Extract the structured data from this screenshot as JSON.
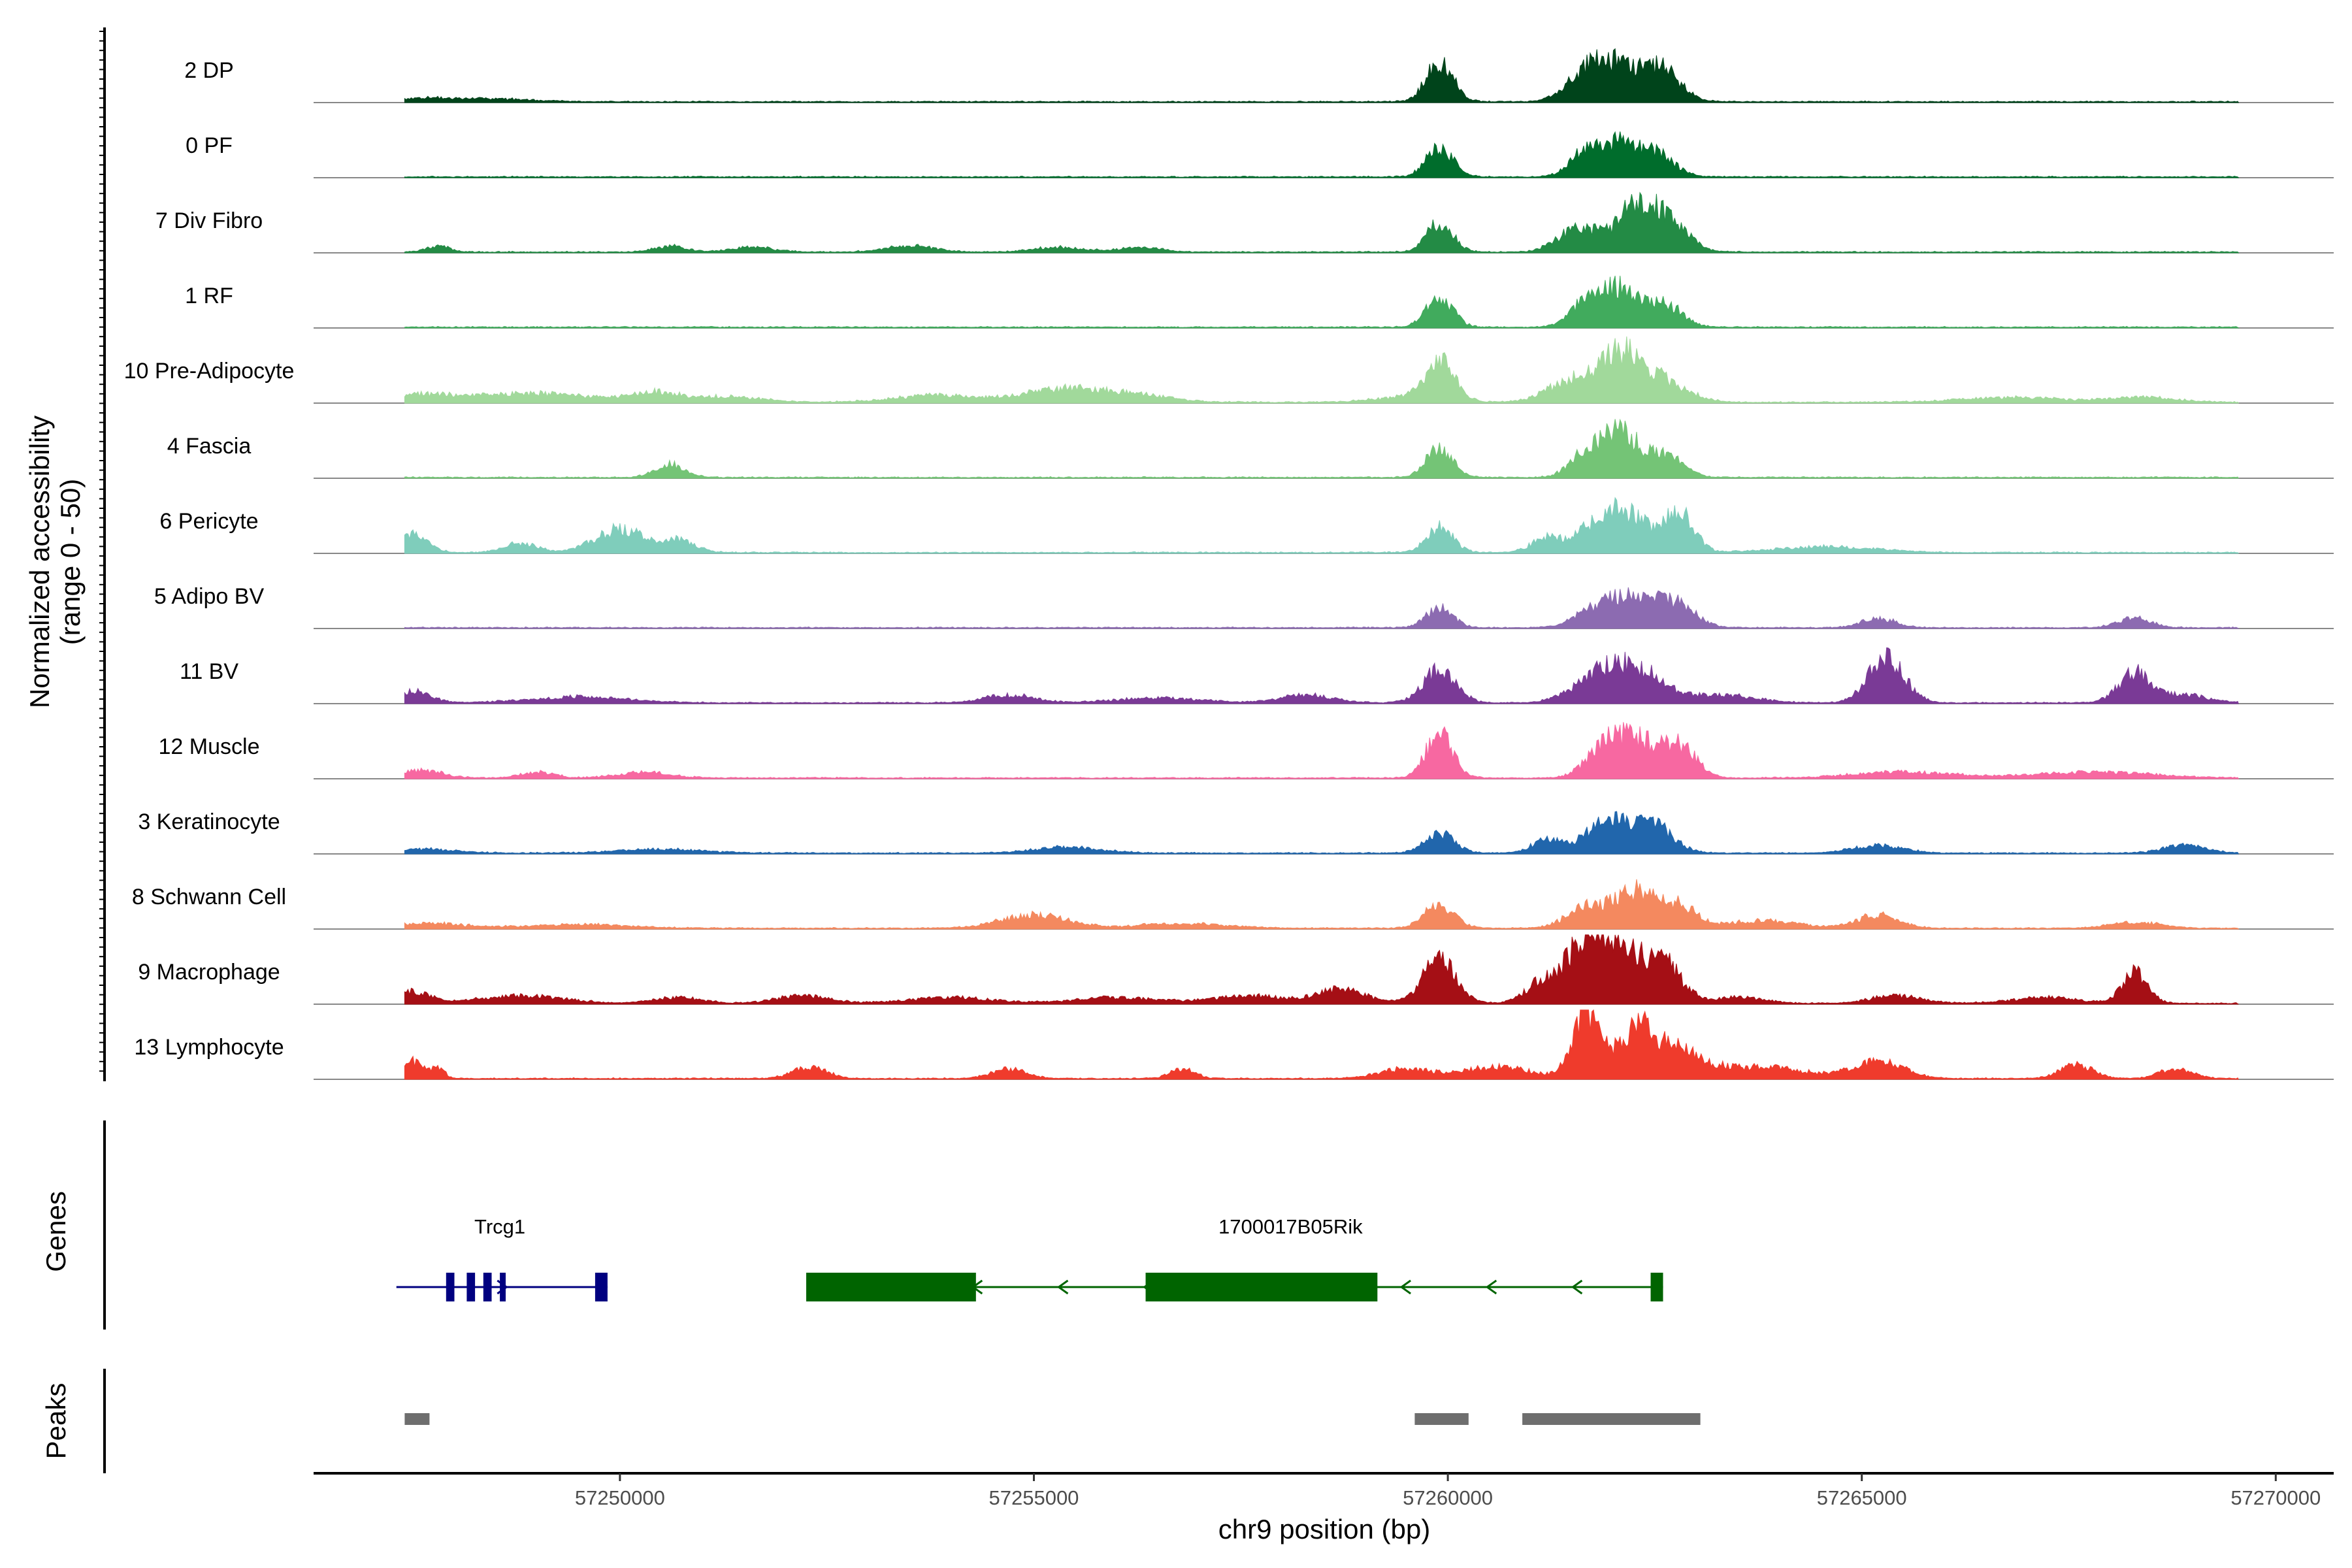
{
  "chart_data": {
    "type": "area",
    "title": "",
    "xlabel": "chr9 position (bp)",
    "ylabel": "Normalized accessibility\n(range 0 - 50)",
    "ylabel_line1": "Normalized accessibility",
    "ylabel_line2": "(range 0 - 50)",
    "ylim": [
      0,
      50
    ],
    "xlim": [
      57246300,
      57270700
    ],
    "x_ticks": [
      57250000,
      57255000,
      57260000,
      57265000,
      57270000
    ],
    "x_tick_labels": [
      "57250000",
      "57255000",
      "57260000",
      "57265000",
      "57270000"
    ],
    "panel_labels": {
      "genes": "Genes",
      "peaks": "Peaks"
    },
    "series": [
      {
        "name": "2 DP",
        "color": "#00441b",
        "peaks": [
          [
            57247600,
            3,
            320
          ],
          [
            57248400,
            3,
            500
          ],
          [
            57259900,
            42,
            160
          ],
          [
            57261700,
            28,
            250
          ],
          [
            57262100,
            30,
            300
          ],
          [
            57262600,
            28,
            220
          ]
        ]
      },
      {
        "name": "0 PF",
        "color": "#006d2c",
        "peaks": [
          [
            57259900,
            30,
            160
          ],
          [
            57261700,
            28,
            200
          ],
          [
            57262100,
            28,
            200
          ],
          [
            57262500,
            24,
            220
          ]
        ]
      },
      {
        "name": "7 Div Fibro",
        "color": "#238b45",
        "peaks": [
          [
            57247800,
            6,
            140
          ],
          [
            57250600,
            6,
            200
          ],
          [
            57251600,
            5,
            250
          ],
          [
            57253500,
            6,
            300
          ],
          [
            57255300,
            5,
            300
          ],
          [
            57256300,
            5,
            250
          ],
          [
            57259900,
            30,
            160
          ],
          [
            57261600,
            26,
            250
          ],
          [
            57262300,
            50,
            220
          ],
          [
            57262700,
            26,
            220
          ]
        ]
      },
      {
        "name": "1 RF",
        "color": "#41ab5d",
        "peaks": [
          [
            57259900,
            30,
            160
          ],
          [
            57261700,
            28,
            200
          ],
          [
            57262100,
            36,
            200
          ],
          [
            57262600,
            24,
            220
          ]
        ]
      },
      {
        "name": "10 Pre-Adipocyte",
        "color": "#a1d99b",
        "peaks": [
          [
            57247600,
            8,
            500
          ],
          [
            57249000,
            9,
            600
          ],
          [
            57250400,
            10,
            300
          ],
          [
            57251300,
            6,
            400
          ],
          [
            57253800,
            7,
            500
          ],
          [
            57255400,
            14,
            500
          ],
          [
            57256300,
            6,
            400
          ],
          [
            57259500,
            5,
            400
          ],
          [
            57259900,
            40,
            180
          ],
          [
            57261500,
            22,
            300
          ],
          [
            57262100,
            46,
            250
          ],
          [
            57262600,
            20,
            300
          ],
          [
            57266800,
            5,
            600
          ],
          [
            57268400,
            5,
            400
          ]
        ]
      },
      {
        "name": "4 Fascia",
        "color": "#74c476",
        "peaks": [
          [
            57250600,
            14,
            180
          ],
          [
            57259900,
            30,
            160
          ],
          [
            57261700,
            28,
            200
          ],
          [
            57262100,
            42,
            200
          ],
          [
            57262600,
            24,
            220
          ]
        ]
      },
      {
        "name": "6 Pericyte",
        "color": "#7fcdbb",
        "peaks": [
          [
            57247500,
            18,
            180
          ],
          [
            57248800,
            10,
            200
          ],
          [
            57250000,
            24,
            300
          ],
          [
            57250700,
            12,
            200
          ],
          [
            57259900,
            26,
            160
          ],
          [
            57261200,
            16,
            180
          ],
          [
            57261800,
            28,
            220
          ],
          [
            57262200,
            36,
            250
          ],
          [
            57262800,
            40,
            180
          ],
          [
            57264600,
            6,
            600
          ]
        ]
      },
      {
        "name": "5 Adipo BV",
        "color": "#8c6bb1",
        "peaks": [
          [
            57259900,
            20,
            160
          ],
          [
            57261800,
            18,
            250
          ],
          [
            57262300,
            30,
            300
          ],
          [
            57262800,
            18,
            220
          ],
          [
            57265200,
            10,
            200
          ],
          [
            57268300,
            10,
            200
          ]
        ]
      },
      {
        "name": "11 BV",
        "color": "#7a3a96",
        "peaks": [
          [
            57247500,
            12,
            200
          ],
          [
            57249500,
            6,
            600
          ],
          [
            57254700,
            8,
            300
          ],
          [
            57256500,
            5,
            500
          ],
          [
            57258300,
            8,
            300
          ],
          [
            57259900,
            34,
            200
          ],
          [
            57261800,
            26,
            300
          ],
          [
            57262300,
            32,
            300
          ],
          [
            57263300,
            8,
            400
          ],
          [
            57265300,
            46,
            220
          ],
          [
            57268300,
            30,
            200
          ],
          [
            57268900,
            8,
            300
          ]
        ]
      },
      {
        "name": "12 Muscle",
        "color": "#f768a1",
        "peaks": [
          [
            57247600,
            8,
            250
          ],
          [
            57249000,
            6,
            200
          ],
          [
            57250300,
            6,
            300
          ],
          [
            57259900,
            46,
            160
          ],
          [
            57261900,
            32,
            220
          ],
          [
            57262300,
            36,
            220
          ],
          [
            57262800,
            32,
            200
          ],
          [
            57265500,
            6,
            600
          ],
          [
            57267800,
            6,
            700
          ]
        ]
      },
      {
        "name": "3 Keratinocyte",
        "color": "#2166ac",
        "peaks": [
          [
            57247600,
            4,
            400
          ],
          [
            57250500,
            4,
            500
          ],
          [
            57255400,
            6,
            400
          ],
          [
            57259900,
            20,
            180
          ],
          [
            57261200,
            14,
            180
          ],
          [
            57261800,
            20,
            220
          ],
          [
            57262200,
            28,
            250
          ],
          [
            57262600,
            18,
            200
          ],
          [
            57265200,
            8,
            300
          ],
          [
            57268900,
            8,
            250
          ]
        ]
      },
      {
        "name": "8 Schwann Cell",
        "color": "#f4895f",
        "peaks": [
          [
            57247700,
            5,
            400
          ],
          [
            57249500,
            4,
            600
          ],
          [
            57255000,
            14,
            400
          ],
          [
            57256800,
            5,
            500
          ],
          [
            57259900,
            24,
            180
          ],
          [
            57261700,
            22,
            250
          ],
          [
            57262300,
            38,
            250
          ],
          [
            57262800,
            20,
            220
          ],
          [
            57263800,
            8,
            400
          ],
          [
            57265200,
            14,
            250
          ],
          [
            57268300,
            6,
            300
          ]
        ]
      },
      {
        "name": "9 Macrophage",
        "color": "#a50f15",
        "peaks": [
          [
            57247500,
            12,
            200
          ],
          [
            57248800,
            8,
            500
          ],
          [
            57250700,
            6,
            300
          ],
          [
            57252200,
            8,
            300
          ],
          [
            57254000,
            6,
            500
          ],
          [
            57256000,
            6,
            500
          ],
          [
            57257600,
            8,
            400
          ],
          [
            57258700,
            14,
            300
          ],
          [
            57259900,
            46,
            200
          ],
          [
            57261200,
            26,
            220
          ],
          [
            57261700,
            70,
            200
          ],
          [
            57262100,
            50,
            250
          ],
          [
            57262600,
            40,
            220
          ],
          [
            57263500,
            6,
            300
          ],
          [
            57265400,
            8,
            300
          ],
          [
            57267200,
            6,
            400
          ],
          [
            57268300,
            34,
            150
          ]
        ]
      },
      {
        "name": "13 Lymphocyte",
        "color": "#ef3b2c",
        "peaks": [
          [
            57247500,
            18,
            120
          ],
          [
            57247800,
            12,
            80
          ],
          [
            57252300,
            12,
            200
          ],
          [
            57254700,
            10,
            200
          ],
          [
            57256800,
            10,
            150
          ],
          [
            57259500,
            10,
            300
          ],
          [
            57260600,
            12,
            400
          ],
          [
            57261700,
            70,
            180
          ],
          [
            57262300,
            50,
            200
          ],
          [
            57262800,
            28,
            300
          ],
          [
            57263800,
            12,
            500
          ],
          [
            57265200,
            18,
            300
          ],
          [
            57267600,
            14,
            200
          ],
          [
            57268800,
            10,
            200
          ]
        ]
      }
    ],
    "genes": [
      {
        "name": "Trcg1",
        "strand": "+",
        "color": "#000080",
        "start": 57247300,
        "end": 57249850,
        "exons": [
          [
            57247900,
            57248000
          ],
          [
            57248150,
            57248250
          ],
          [
            57248350,
            57248450
          ],
          [
            57248550,
            57248620
          ],
          [
            57249700,
            57249850
          ]
        ]
      },
      {
        "name": "1700017B05Rik",
        "strand": "-",
        "color": "#006400",
        "start": 57252250,
        "end": 57262600,
        "exons": [
          [
            57252250,
            57254300
          ],
          [
            57256350,
            57259150
          ],
          [
            57262450,
            57262600
          ]
        ]
      }
    ],
    "peak_regions": [
      [
        57247400,
        57247700
      ],
      [
        57259600,
        57260250
      ],
      [
        57260900,
        57263050
      ]
    ]
  }
}
